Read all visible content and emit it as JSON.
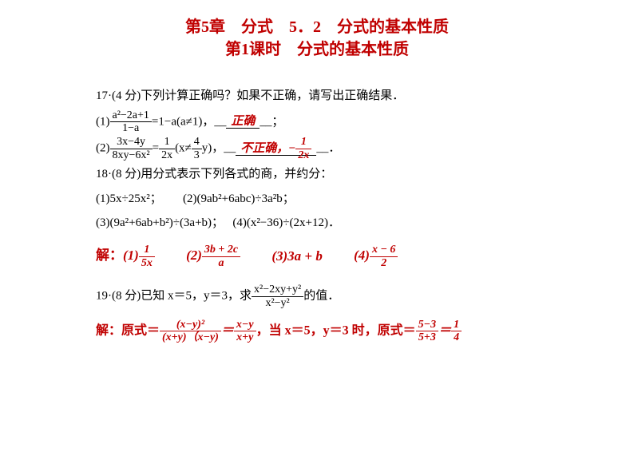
{
  "colors": {
    "red": "#c00000",
    "black": "#000000",
    "background": "#ffffff"
  },
  "title": {
    "line1": "第5章　分式　5．2　分式的基本性质",
    "line2": "第1课时　分式的基本性质",
    "fontsize": 20
  },
  "q17": {
    "prompt": "17·(4 分)下列计算正确吗？如果不正确，请写出正确结果．",
    "part1": {
      "prefix": "(1)",
      "frac_num": "a²−2a+1",
      "frac_den": "1−a",
      "eq": "=1−a(a≠1)，__",
      "answer": "正确",
      "suffix": "__；"
    },
    "part2": {
      "prefix": "(2)",
      "frac1_num": "3x−4y",
      "frac1_den": "8xy−6x²",
      "eq1": "=",
      "frac2_num": "1",
      "frac2_den": "2x",
      "paren_open": "(x≠",
      "frac3_num": "4",
      "frac3_den": "3",
      "paren_close": "y)，__",
      "answer_text": "不正确，−",
      "answer_frac_num": "1",
      "answer_frac_den": "2x",
      "suffix": "__．"
    }
  },
  "q18": {
    "prompt": "18·(8 分)用分式表示下列各式的商，并约分：",
    "items": {
      "a": "(1)5x÷25x²；",
      "b": "(2)(9ab²+6abc)÷3a²b；",
      "c": "(3)(9a²+6ab+b²)÷(3a+b)；",
      "d": "(4)(x²−36)÷(2x+12)．"
    },
    "answers": {
      "label": "解：",
      "a1_num": "1",
      "a1_den": "5x",
      "a1_pre": "(1)",
      "a2_num": "3b + 2c",
      "a2_den": "a",
      "a2_pre": "(2)",
      "a3": "(3)3a + b",
      "a4_num": "x − 6",
      "a4_den": "2",
      "a4_pre": "(4)"
    }
  },
  "q19": {
    "prompt_pre": "19·(8 分)已知 x＝5，y＝3，求",
    "frac_num": "x²−2xy+y²",
    "frac_den": "x²−y²",
    "prompt_post": "的值．",
    "answer": {
      "label": "解：原式＝",
      "f1_num": "(x−y)²",
      "f1_den": "(x+y)（x−y)",
      "eq1": "＝",
      "f2_num": "x−y",
      "f2_den": "x+y",
      "mid": "，当 x＝5，y＝3 时，原式＝",
      "f3_num": "5−3",
      "f3_den": "5+3",
      "eq2": "＝",
      "f4_num": "1",
      "f4_den": "4"
    }
  }
}
